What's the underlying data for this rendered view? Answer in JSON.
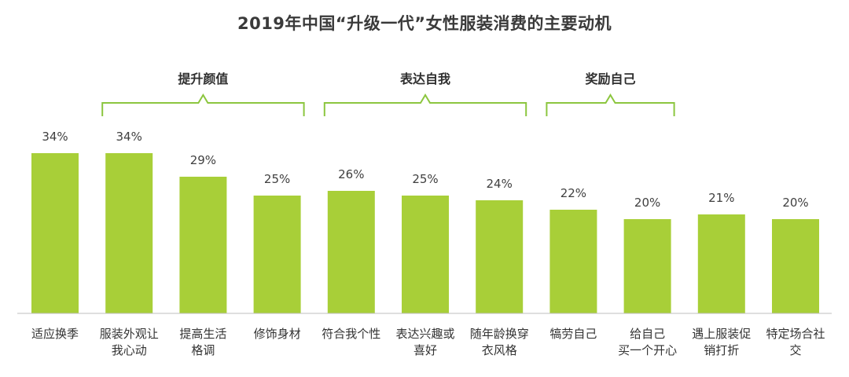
{
  "chart_data": {
    "type": "bar",
    "title": "2019年中国“升级一代”女性服装消费的主要动机",
    "categories": [
      [
        "适应换季"
      ],
      [
        "服装外观让",
        "我心动"
      ],
      [
        "提高生活",
        "格调"
      ],
      [
        "修饰身材"
      ],
      [
        "符合我个性"
      ],
      [
        "表达兴趣或",
        "喜好"
      ],
      [
        "随年龄换穿",
        "衣风格"
      ],
      [
        "犒劳自己"
      ],
      [
        "给自己",
        "买一个开心"
      ],
      [
        "遇上服装促",
        "销打折"
      ],
      [
        "特定场合社",
        "交"
      ]
    ],
    "values": [
      34,
      34,
      29,
      25,
      26,
      25,
      24,
      22,
      20,
      21,
      20
    ],
    "value_labels": [
      "34%",
      "34%",
      "29%",
      "25%",
      "26%",
      "25%",
      "24%",
      "22%",
      "20%",
      "21%",
      "20%"
    ],
    "unit": "%",
    "ylim": [
      0,
      34
    ],
    "groups": [
      {
        "label": "提升颜值",
        "from": 1,
        "to": 3
      },
      {
        "label": "表达自我",
        "from": 4,
        "to": 6
      },
      {
        "label": "奖励自己",
        "from": 7,
        "to": 8
      }
    ],
    "bar_color": "#a8cf38",
    "bracket_color": "#8cc63f"
  }
}
